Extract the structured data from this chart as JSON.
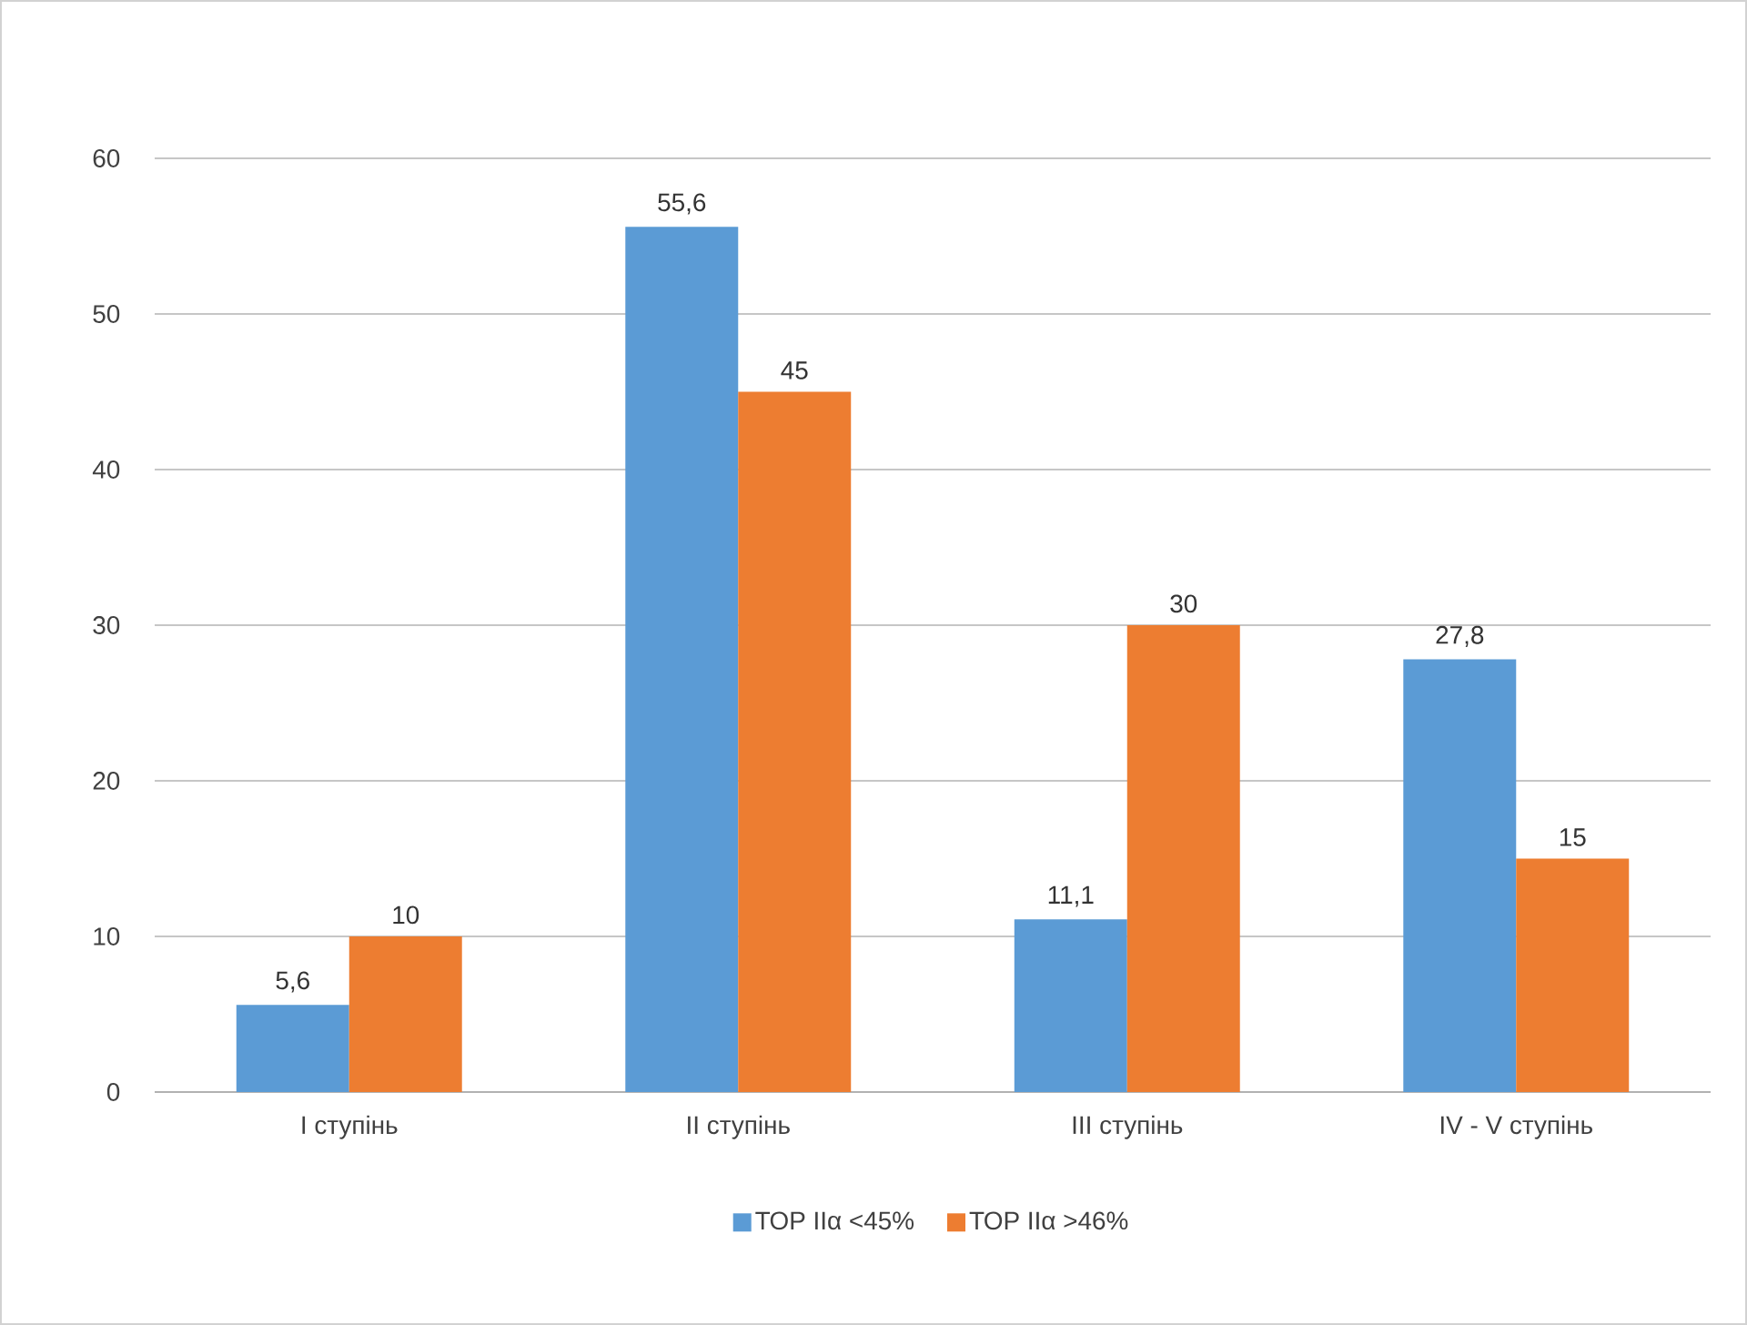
{
  "chart_data": {
    "type": "bar",
    "categories": [
      "І ступінь",
      "ІІ ступінь",
      "ІІІ ступінь",
      "IV - V ступінь"
    ],
    "series": [
      {
        "name": "ТОР IIα <45%",
        "color": "#5b9bd5",
        "values": [
          5.6,
          55.6,
          11.1,
          27.8
        ],
        "value_labels": [
          "5,6",
          "55,6",
          "11,1",
          "27,8"
        ]
      },
      {
        "name": "ТОР IIα >46%",
        "color": "#ed7d31",
        "values": [
          10,
          45,
          30,
          15
        ],
        "value_labels": [
          "10",
          "45",
          "30",
          "15"
        ]
      }
    ],
    "ylim": [
      0,
      60
    ],
    "yticks": [
      0,
      10,
      20,
      30,
      40,
      50,
      60
    ],
    "grid": "y",
    "legend": "bottom"
  }
}
